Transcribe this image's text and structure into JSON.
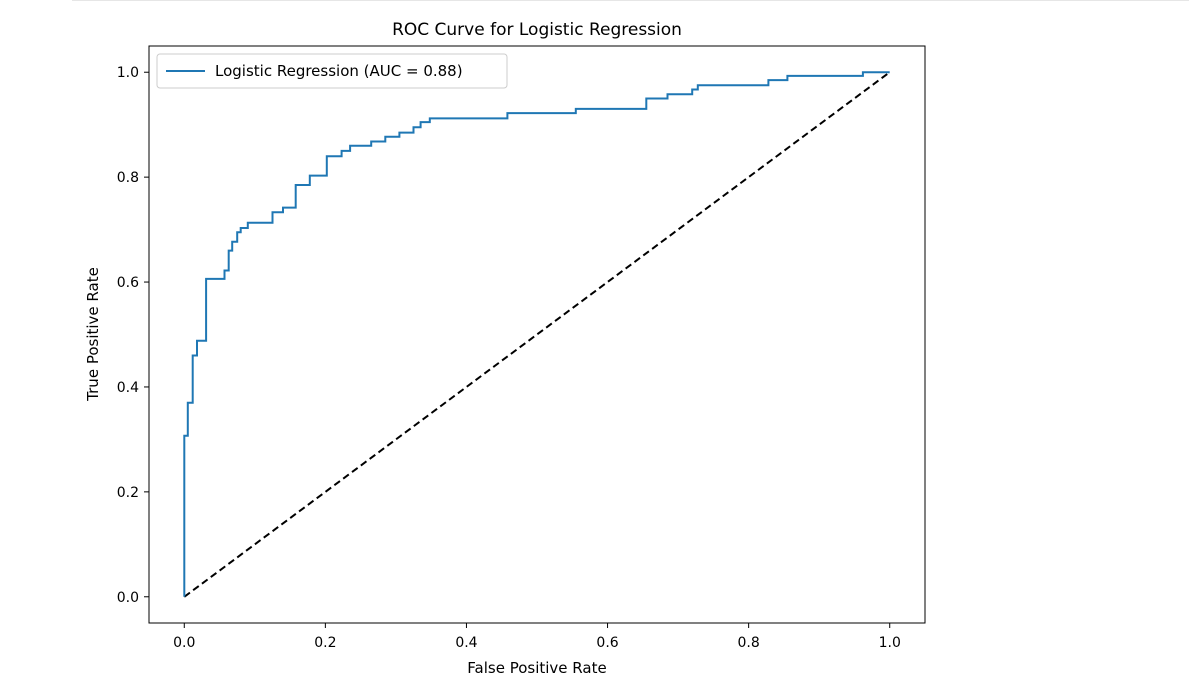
{
  "chart_data": {
    "type": "line",
    "title": "ROC Curve for Logistic Regression",
    "xlabel": "False Positive Rate",
    "ylabel": "True Positive Rate",
    "xlim": [
      -0.05,
      1.05
    ],
    "ylim": [
      -0.05,
      1.05
    ],
    "xticks": [
      0.0,
      0.2,
      0.4,
      0.6,
      0.8,
      1.0
    ],
    "xtick_labels": [
      "0.0",
      "0.2",
      "0.4",
      "0.6",
      "0.8",
      "1.0"
    ],
    "yticks": [
      0.0,
      0.2,
      0.4,
      0.6,
      0.8,
      1.0
    ],
    "ytick_labels": [
      "0.0",
      "0.2",
      "0.4",
      "0.6",
      "0.8",
      "1.0"
    ],
    "grid": false,
    "legend_position": "upper-left",
    "series": [
      {
        "name": "Logistic Regression (AUC = 0.88)",
        "color": "#1f77b4",
        "style": "solid",
        "step": true,
        "x": [
          0.0,
          0.0,
          0.005,
          0.005,
          0.012,
          0.012,
          0.018,
          0.018,
          0.024,
          0.024,
          0.031,
          0.031,
          0.057,
          0.057,
          0.063,
          0.063,
          0.068,
          0.068,
          0.075,
          0.075,
          0.08,
          0.08,
          0.09,
          0.09,
          0.125,
          0.125,
          0.14,
          0.14,
          0.158,
          0.158,
          0.178,
          0.178,
          0.202,
          0.202,
          0.223,
          0.223,
          0.235,
          0.235,
          0.265,
          0.265,
          0.285,
          0.285,
          0.305,
          0.305,
          0.325,
          0.325,
          0.335,
          0.335,
          0.348,
          0.348,
          0.458,
          0.458,
          0.555,
          0.555,
          0.655,
          0.655,
          0.685,
          0.685,
          0.72,
          0.72,
          0.728,
          0.728,
          0.828,
          0.828,
          0.855,
          0.855,
          0.962,
          0.962,
          1.0
        ],
        "y": [
          0.0,
          0.307,
          0.307,
          0.37,
          0.37,
          0.46,
          0.46,
          0.488,
          0.488,
          0.488,
          0.488,
          0.606,
          0.606,
          0.622,
          0.622,
          0.66,
          0.66,
          0.677,
          0.677,
          0.695,
          0.695,
          0.703,
          0.703,
          0.713,
          0.713,
          0.733,
          0.733,
          0.742,
          0.742,
          0.785,
          0.785,
          0.803,
          0.803,
          0.84,
          0.84,
          0.85,
          0.85,
          0.86,
          0.86,
          0.868,
          0.868,
          0.877,
          0.877,
          0.885,
          0.885,
          0.895,
          0.895,
          0.905,
          0.905,
          0.912,
          0.912,
          0.922,
          0.922,
          0.93,
          0.93,
          0.95,
          0.95,
          0.958,
          0.958,
          0.967,
          0.967,
          0.975,
          0.975,
          0.985,
          0.985,
          0.993,
          0.993,
          1.0,
          1.0
        ]
      },
      {
        "color": "#000000",
        "style": "dashed",
        "x": [
          0.0,
          1.0
        ],
        "y": [
          0.0,
          1.0
        ]
      }
    ]
  }
}
